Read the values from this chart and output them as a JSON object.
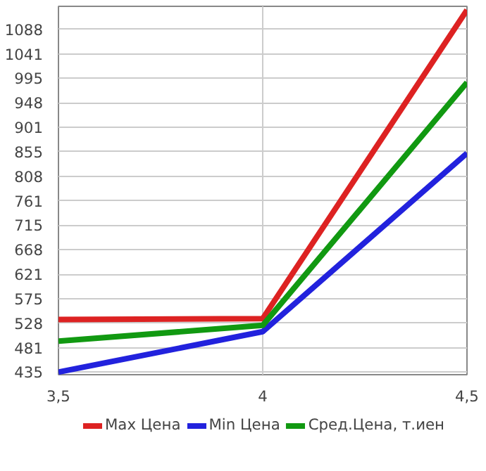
{
  "chart_data": {
    "type": "line",
    "x": [
      3.5,
      4,
      4.5
    ],
    "series": [
      {
        "name": "Max Цена",
        "color": "#dd2222",
        "values": [
          535,
          537,
          1125
        ]
      },
      {
        "name": "Min Цена",
        "color": "#2222dd",
        "values": [
          435,
          512,
          852
        ]
      },
      {
        "name": "Сред.Цена, т.иен",
        "color": "#119911",
        "values": [
          494,
          524,
          987
        ]
      }
    ],
    "xlim": [
      3.5,
      4.5
    ],
    "ylim": [
      430,
      1132
    ],
    "xticks": [
      {
        "value": 3.5,
        "label": "3,5"
      },
      4,
      {
        "value": 4.5,
        "label": "4,5"
      }
    ],
    "yticks": [
      435,
      481,
      528,
      575,
      621,
      668,
      715,
      761,
      808,
      855,
      901,
      948,
      995,
      1041,
      1088
    ],
    "grid": true,
    "legend": "bottom",
    "marker": "none",
    "line_style": "solid"
  }
}
